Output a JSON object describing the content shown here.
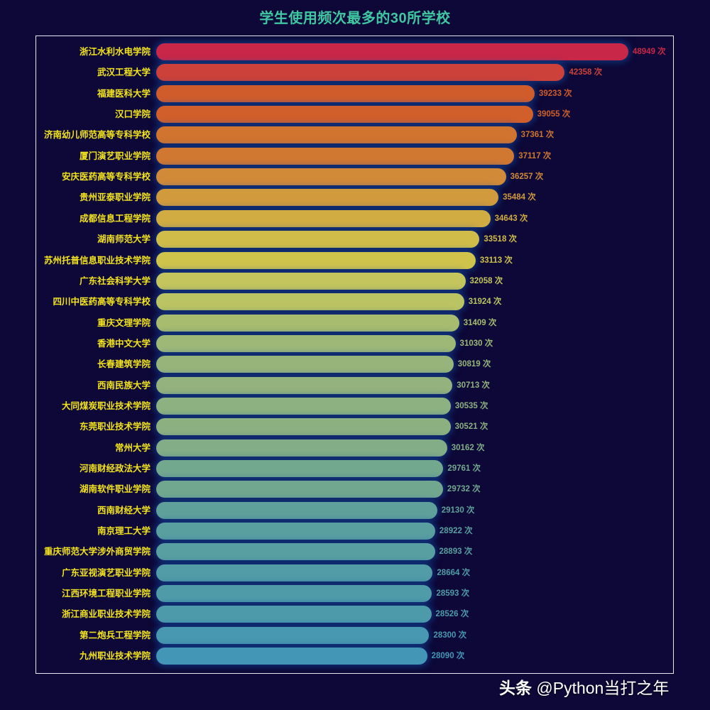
{
  "title": "学生使用频次最多的30所学校",
  "watermark": {
    "brand": "头条",
    "handle": "@Python当打之年"
  },
  "value_suffix": " 次",
  "chart_data": {
    "type": "bar",
    "orientation": "horizontal",
    "title": "学生使用频次最多的30所学校",
    "xlabel": "",
    "ylabel": "",
    "grid": false,
    "legend": null,
    "value_label_suffix": "次",
    "categories": [
      "浙江水利水电学院",
      "武汉工程大学",
      "福建医科大学",
      "汉口学院",
      "济南幼儿师范高等专科学校",
      "厦门演艺职业学院",
      "安庆医药高等专科学校",
      "贵州亚泰职业学院",
      "成都信息工程学院",
      "湖南师范大学",
      "苏州托普信息职业技术学院",
      "广东社会科学大学",
      "四川中医药高等专科学校",
      "重庆文理学院",
      "香港中文大学",
      "长春建筑学院",
      "西南民族大学",
      "大同煤炭职业技术学院",
      "东莞职业技术学院",
      "常州大学",
      "河南财经政法大学",
      "湖南软件职业学院",
      "西南财经大学",
      "南京理工大学",
      "重庆师范大学涉外商贸学院",
      "广东亚视演艺职业学院",
      "江西环境工程职业学院",
      "浙江商业职业技术学院",
      "第二炮兵工程学院",
      "九州职业技术学院"
    ],
    "values": [
      48949,
      42358,
      39233,
      39055,
      37361,
      37117,
      36257,
      35484,
      34643,
      33518,
      33113,
      32058,
      31924,
      31409,
      31030,
      30819,
      30713,
      30535,
      30521,
      30162,
      29761,
      29732,
      29130,
      28922,
      28893,
      28664,
      28593,
      28526,
      28300,
      28090
    ],
    "colors": [
      "#c92747",
      "#cc4139",
      "#d05c2c",
      "#d05f2b",
      "#d0742f",
      "#d07831",
      "#d08a38",
      "#d09a3d",
      "#d0ac42",
      "#d0bd49",
      "#cfc34c",
      "#c4c55c",
      "#bbc462",
      "#a7bc6f",
      "#9eb878",
      "#97b47b",
      "#93b27d",
      "#8db180",
      "#8cb080",
      "#82ad86",
      "#72a88e",
      "#71a78f",
      "#5fa19a",
      "#599fa0",
      "#589fa1",
      "#519ca6",
      "#4f9ca8",
      "#4d9baa",
      "#4898b1",
      "#4496b7"
    ]
  }
}
